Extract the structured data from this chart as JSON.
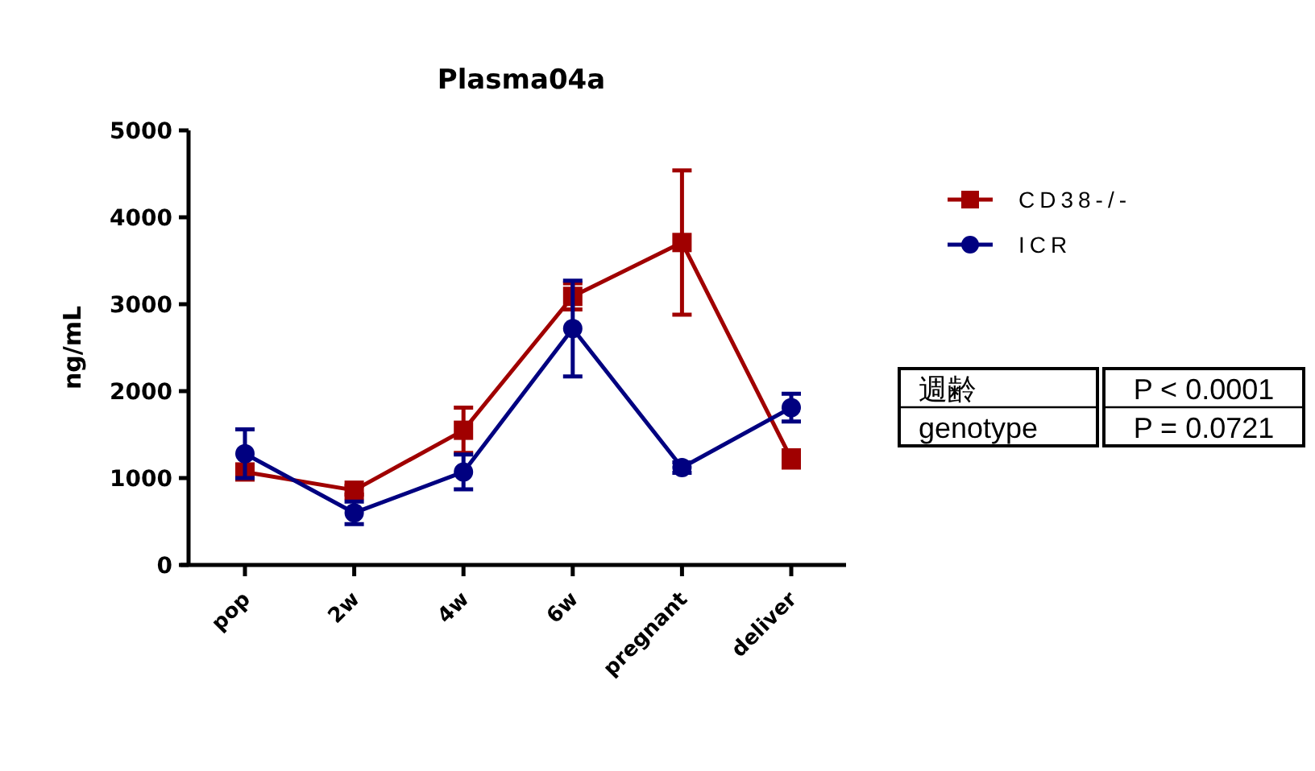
{
  "chart_data": {
    "type": "line",
    "title": "Plasma04a",
    "ylabel": "ng/mL",
    "categories": [
      "pop",
      "2w",
      "4w",
      "6w",
      "pregnant",
      "deliver"
    ],
    "series": [
      {
        "name": "CD38-/-",
        "color": "#a00000",
        "marker": "square",
        "values": [
          1070,
          860,
          1550,
          3090,
          3710,
          1220
        ],
        "errors": [
          null,
          50,
          260,
          150,
          830,
          100
        ]
      },
      {
        "name": "ICR",
        "color": "#000080",
        "marker": "circle",
        "values": [
          1280,
          600,
          1070,
          2720,
          1120,
          1810
        ],
        "errors": [
          280,
          130,
          200,
          550,
          60,
          160
        ]
      }
    ],
    "ylim": [
      0,
      5000
    ],
    "yticks": [
      0,
      1000,
      2000,
      3000,
      4000,
      5000
    ],
    "legend": "top right",
    "grid": false,
    "annotations": [
      "週齢",
      "P < 0.0001",
      "genotype",
      "P = 0.0721"
    ]
  }
}
